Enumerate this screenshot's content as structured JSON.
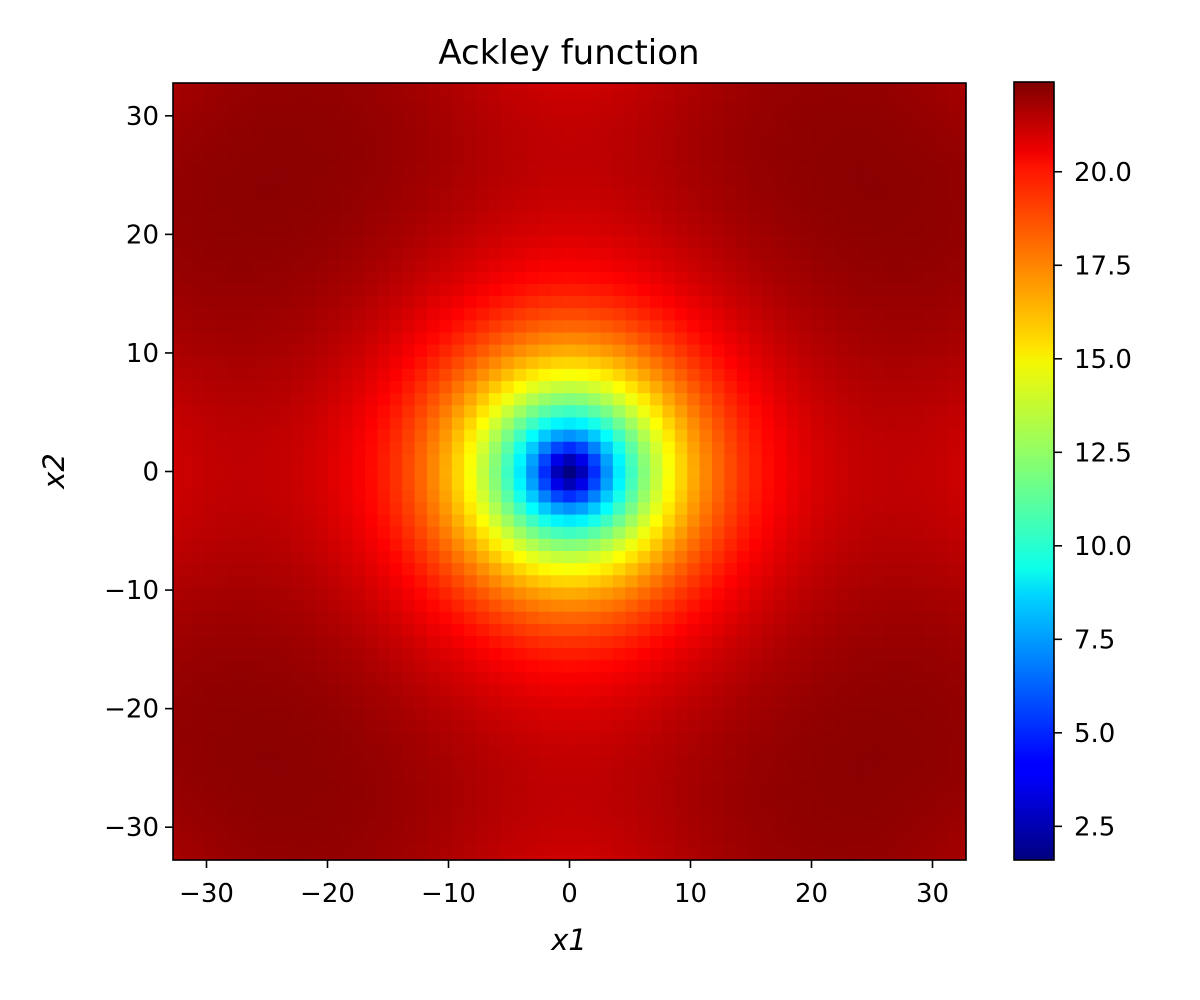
{
  "chart_data": {
    "type": "heatmap",
    "title": "Ackley function",
    "xlabel": "x1",
    "ylabel": "x2",
    "function": "ackley",
    "xlim": [
      -32.768,
      32.768
    ],
    "ylim": [
      -32.768,
      32.768
    ],
    "grid_points": 65,
    "x_ticks": [
      -30,
      -20,
      -10,
      0,
      10,
      20,
      30
    ],
    "x_tick_labels": [
      "−30",
      "−20",
      "−10",
      "0",
      "10",
      "20",
      "30"
    ],
    "y_ticks": [
      -30,
      -20,
      -10,
      0,
      10,
      20,
      30
    ],
    "y_tick_labels": [
      "−30",
      "−20",
      "−10",
      "0",
      "10",
      "20",
      "30"
    ],
    "colormap": "jet",
    "colorbar": {
      "range": [
        1.6,
        22.4
      ],
      "ticks": [
        2.5,
        5.0,
        7.5,
        10.0,
        12.5,
        15.0,
        17.5,
        20.0
      ],
      "tick_labels": [
        "2.5",
        "5.0",
        "7.5",
        "10.0",
        "12.5",
        "15.0",
        "17.5",
        "20.0"
      ]
    },
    "grid": false
  }
}
